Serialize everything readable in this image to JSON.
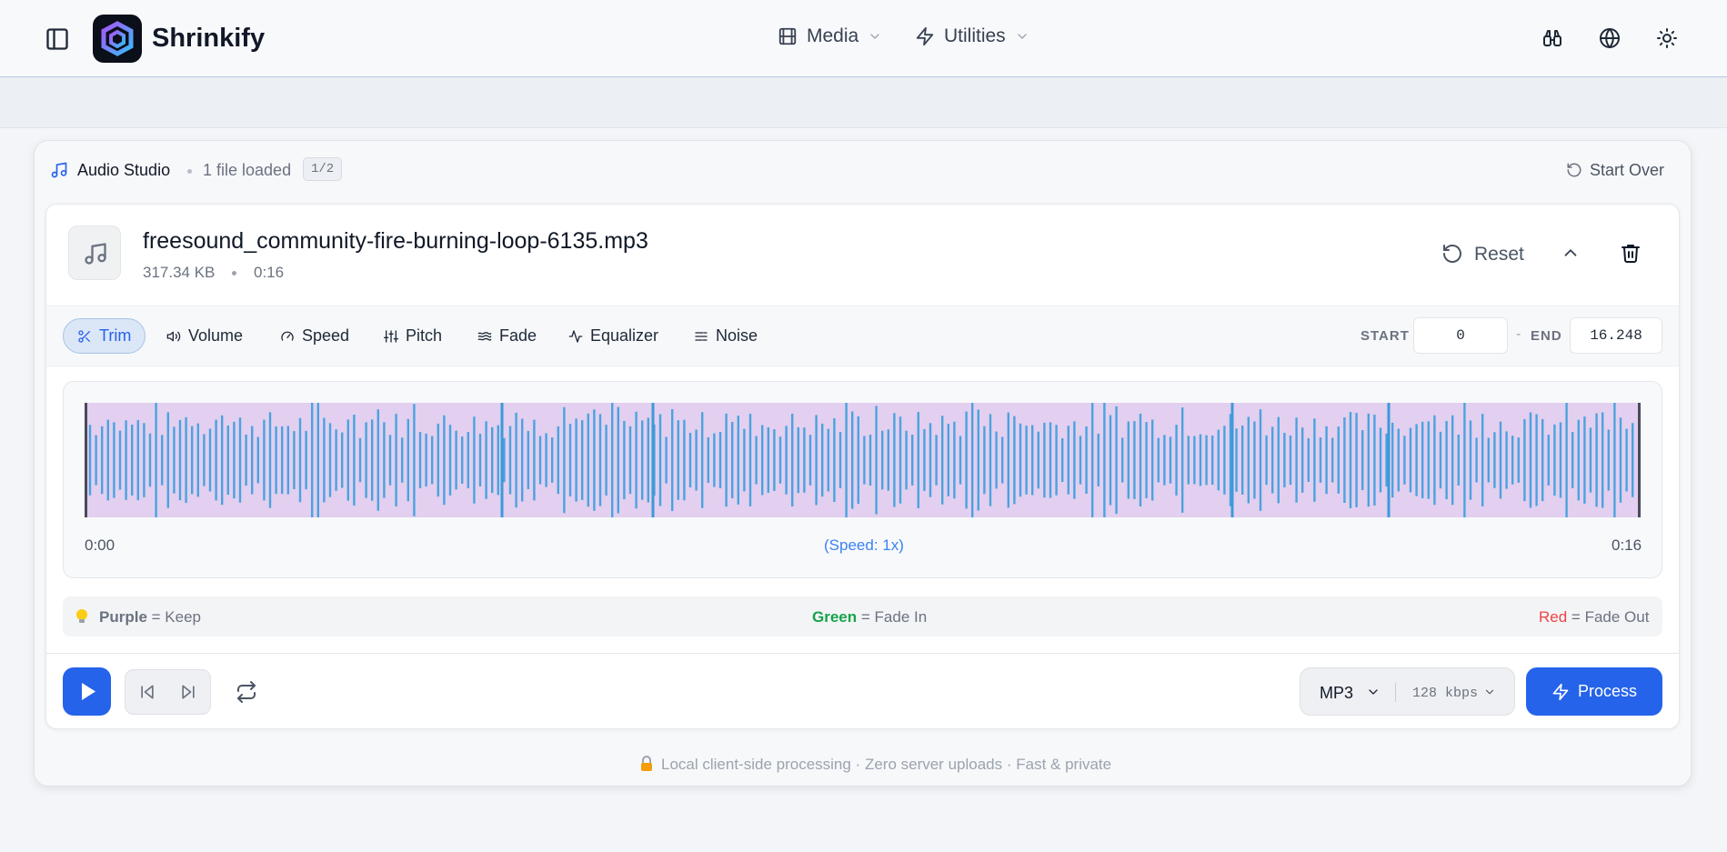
{
  "header": {
    "brand": "Shrinkify",
    "nav": [
      "Media",
      "Utilities"
    ]
  },
  "studio": {
    "title": "Audio Studio",
    "status": "1 file loaded",
    "badge": "1/2",
    "start_over": "Start Over"
  },
  "file": {
    "name": "freesound_community-fire-burning-loop-6135.mp3",
    "size": "317.34 KB",
    "duration": "0:16",
    "reset": "Reset"
  },
  "tabs": [
    "Trim",
    "Volume",
    "Speed",
    "Pitch",
    "Fade",
    "Equalizer",
    "Noise"
  ],
  "range": {
    "start_label": "START",
    "start": "0",
    "separator": "-",
    "end_label": "END",
    "end": "16.248"
  },
  "waveform": {
    "time_start": "0:00",
    "speed": "(Speed: 1x)",
    "time_end": "0:16"
  },
  "legend": [
    {
      "word": "Purple",
      "text": "= Keep"
    },
    {
      "word": "Green",
      "text": "= Fade In"
    },
    {
      "word": "Red",
      "text": "= Fade Out"
    }
  ],
  "output": {
    "format": "MP3",
    "bitrate": "128",
    "unit": "kbps",
    "process": "Process"
  },
  "footer": "Local client-side processing · Zero server uploads · Fast & private"
}
